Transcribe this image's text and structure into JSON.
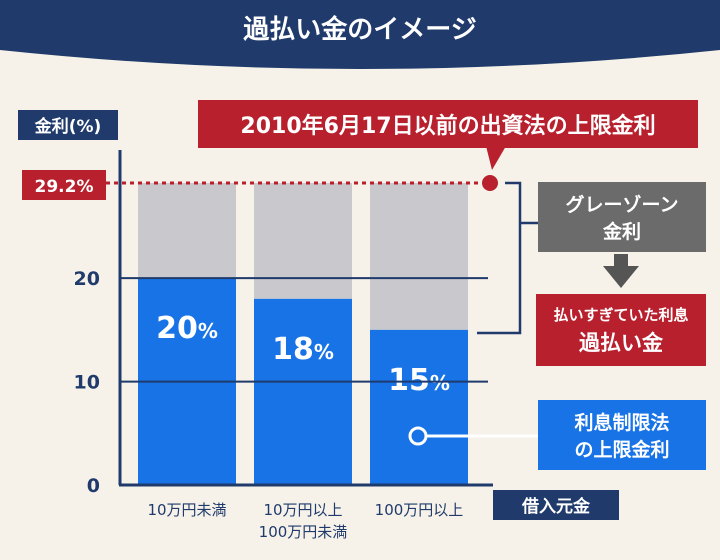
{
  "title": "過払い金のイメージ",
  "colors": {
    "header": "#1f3a6b",
    "background": "#f6f2e9",
    "axis": "#1f3a6b",
    "blue": "#1773e6",
    "gray_bar": "#c9c9cd",
    "red": "#b8202e",
    "gray_box": "#6b6b6b"
  },
  "callouts": {
    "old_limit": "2010年6月17日以前の出資法の上限金利",
    "gray_zone_line1": "グレーゾーン",
    "gray_zone_line2": "金利",
    "overpay_line1": "払いすぎていた利息",
    "overpay_line2": "過払い金",
    "legal_line1": "利息制限法",
    "legal_line2": "の上限金利"
  },
  "chart_data": {
    "type": "bar",
    "ylabel": "金利(%)",
    "xlabel": "借入元金",
    "categories": [
      [
        "10万円未満"
      ],
      [
        "10万円以上",
        "100万円未満"
      ],
      [
        "100万円以上"
      ]
    ],
    "ylim": [
      0,
      29.2
    ],
    "yticks": [
      0,
      10,
      20
    ],
    "reference_line": {
      "value": 29.2,
      "label": "29.2%"
    },
    "series": [
      {
        "name": "利息制限法の上限金利",
        "values": [
          20,
          18,
          15
        ],
        "labels": [
          "20",
          "18",
          "15"
        ],
        "unit": "%"
      },
      {
        "name": "グレーゾーン金利",
        "values": [
          9.2,
          11.2,
          14.2
        ]
      }
    ]
  }
}
